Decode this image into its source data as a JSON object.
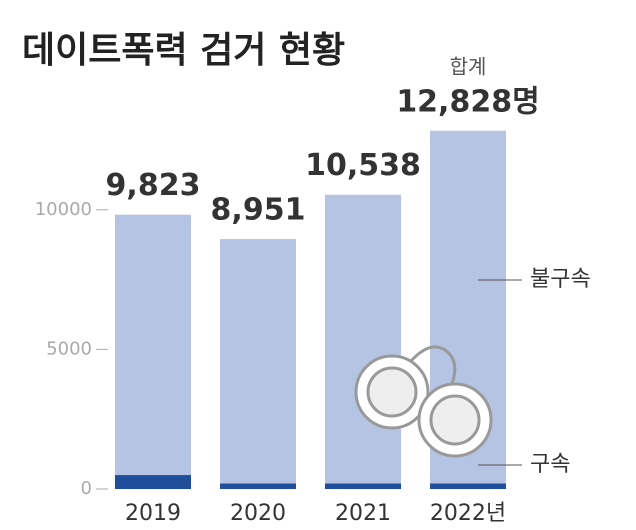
{
  "chart_data": {
    "type": "stacked_bar",
    "title": "데이트폭력 검거 현황",
    "categories": [
      "2019",
      "2020",
      "2021",
      "2022년"
    ],
    "series": [
      {
        "name": "구속",
        "color": "#1f4e9a",
        "values": [
          500,
          200,
          200,
          200
        ]
      },
      {
        "name": "불구속",
        "color": "#b4c4e2",
        "values": [
          9323,
          8751,
          10338,
          12628
        ]
      }
    ],
    "totals": {
      "label": "합계",
      "values": [
        9823,
        8951,
        10538,
        12828
      ],
      "value_labels": [
        "9,823",
        "8,951",
        "10,538",
        "12,828명"
      ]
    },
    "ylim": [
      0,
      13000
    ],
    "yticks": [
      0,
      5000,
      10000
    ]
  }
}
